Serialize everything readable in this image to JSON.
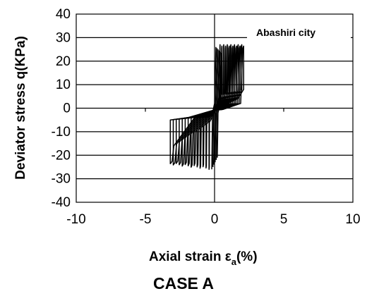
{
  "chart_data": {
    "type": "line",
    "ylabel": "Deviator stress q(KPa)",
    "xlabel_main": "Axial strain ε",
    "xlabel_sub": "a",
    "xlabel_tail": "(%)",
    "annotation": "Abashiri city",
    "caption": "CASE A",
    "xlim": [
      -10,
      10
    ],
    "ylim": [
      -40,
      40
    ],
    "x_ticks": [
      -10,
      -5,
      0,
      5,
      10
    ],
    "y_ticks": [
      40,
      30,
      20,
      10,
      0,
      -10,
      -20,
      -30,
      -40
    ],
    "grid": "horizontal",
    "series_color": "#000000",
    "cycles": 14,
    "envelope": {
      "compression_max_q": 27,
      "extension_min_q": -26,
      "first_cycle_x_max": 0.4,
      "last_cycle_x_max": 2.1,
      "first_cycle_x_min": -0.4,
      "last_cycle_x_min": -3.2
    }
  }
}
